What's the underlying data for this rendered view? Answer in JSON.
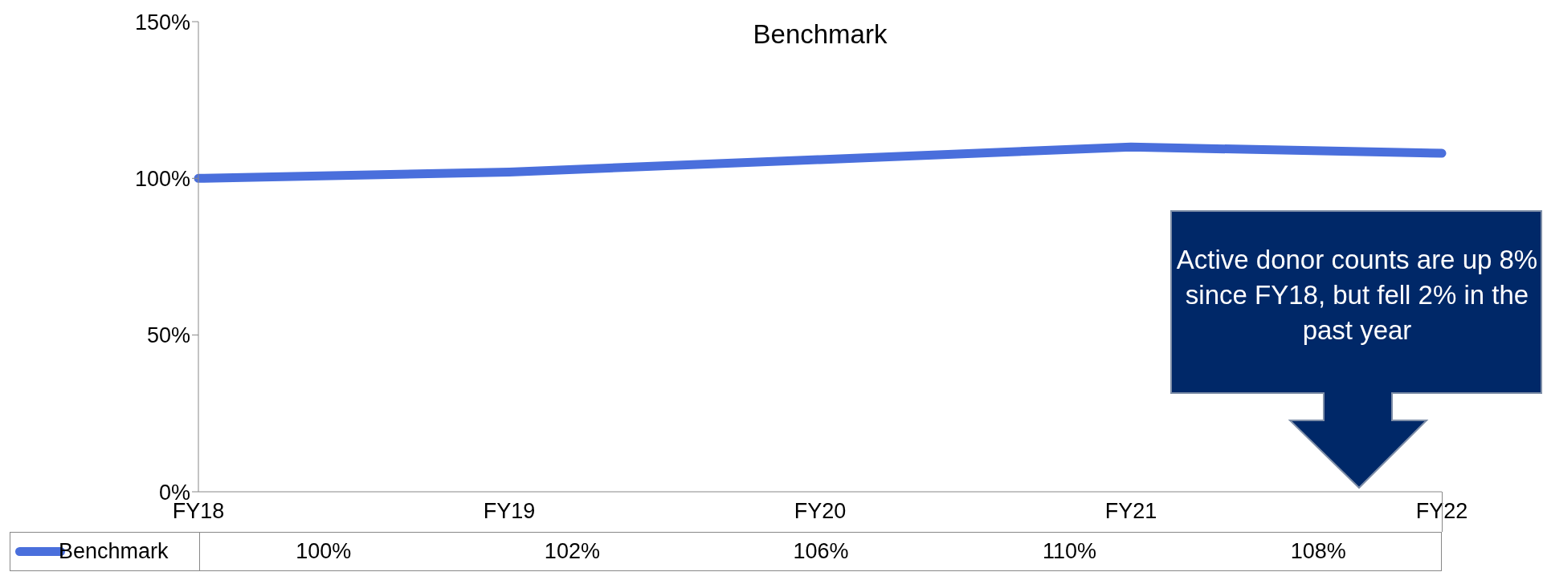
{
  "chart_data": {
    "type": "line",
    "title": "Benchmark",
    "categories": [
      "FY18",
      "FY19",
      "FY20",
      "FY21",
      "FY22"
    ],
    "series": [
      {
        "name": "Benchmark",
        "color": "#4a6fdc",
        "values": [
          100,
          102,
          106,
          110,
          108
        ],
        "value_labels": [
          "100%",
          "102%",
          "106%",
          "110%",
          "108%"
        ]
      }
    ],
    "ylim": [
      0,
      150
    ],
    "yticks": [
      {
        "value": 0,
        "label": "0%"
      },
      {
        "value": 50,
        "label": "50%"
      },
      {
        "value": 100,
        "label": "100%"
      },
      {
        "value": 150,
        "label": "150%"
      }
    ],
    "grid": false,
    "legend": "bottom",
    "marker": "none",
    "line_style": "solid",
    "annotations": [
      "Active donor counts are up 8% since FY18, but fell 2% in the past year"
    ]
  }
}
